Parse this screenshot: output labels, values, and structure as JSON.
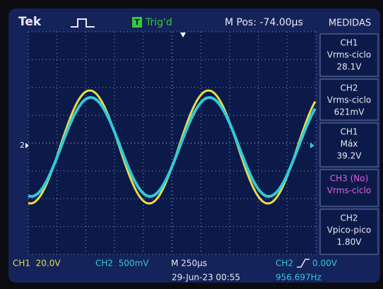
{
  "header": {
    "brand": "Tek",
    "trigger_icon": "T",
    "trigger_status": "Trig'd",
    "horizontal_position": "M Pos: -74.00µs",
    "menu_title": "MEDIDAS"
  },
  "channel_marker": "2",
  "measurements": [
    {
      "source": "CH1",
      "label": "Vrms-ciclo",
      "value": "28.1V"
    },
    {
      "source": "CH2",
      "label": "Vrms-ciclo",
      "value": "621mV"
    },
    {
      "source": "CH1",
      "label": "Máx",
      "value": "39.2V"
    },
    {
      "source": "CH3 (No)",
      "label": "Vrms-ciclo"
    },
    {
      "source": "CH2",
      "label": "Vpico-pico",
      "value": "1.80V"
    }
  ],
  "footer": {
    "ch1_scale": "CH1  20.0V",
    "ch2_scale": "CH2  500mV",
    "timebase": "M 250µs",
    "trigger_source": "CH2",
    "trigger_level": "0.00V",
    "datetime": "29-Jun-23 00:55",
    "frequency": "956.697Hz"
  }
}
